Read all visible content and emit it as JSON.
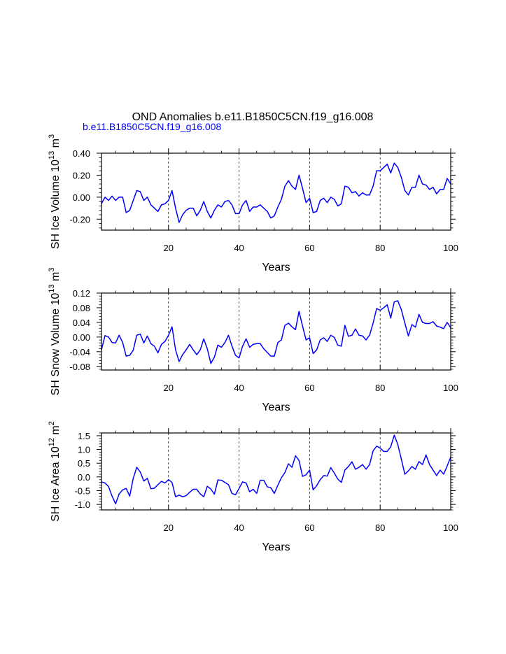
{
  "figure": {
    "title": "OND Anomalies b.e11.B1850C5CN.f19_g16.008",
    "subtitle": "b.e11.B1850C5CN.f19_g16.008",
    "colors": {
      "line": "#0000ff",
      "subtitle": "#0000ff",
      "axes": "#000000",
      "grid": "#000000"
    }
  },
  "chart_data": [
    {
      "type": "line",
      "xlabel": "Years",
      "ylabel": {
        "main": "SH Ice Volume 10",
        "sup": "13",
        "unit": " m",
        "unit_sup": "3"
      },
      "xlim": [
        1,
        100
      ],
      "ylim": [
        -0.3,
        0.4
      ],
      "xticks": [
        20,
        40,
        60,
        80,
        100
      ],
      "xtick_labels": [
        "20",
        "40",
        "60",
        "80",
        "100"
      ],
      "yticks": [
        0.4,
        0.2,
        0.0,
        -0.2
      ],
      "ytick_labels": [
        "0.40",
        "0.20",
        "0.00",
        "-0.20"
      ],
      "grid_x": [
        20,
        40,
        60,
        80
      ],
      "series": [
        {
          "name": "SH Ice Volume",
          "values": [
            -0.06,
            0.0,
            -0.03,
            0.01,
            -0.03,
            0.0,
            0.0,
            -0.14,
            -0.12,
            -0.03,
            0.06,
            0.05,
            -0.03,
            0.0,
            -0.07,
            -0.1,
            -0.13,
            -0.07,
            -0.06,
            -0.03,
            0.06,
            -0.1,
            -0.23,
            -0.16,
            -0.12,
            -0.1,
            -0.1,
            -0.17,
            -0.12,
            -0.04,
            -0.13,
            -0.19,
            -0.12,
            -0.07,
            -0.09,
            -0.04,
            -0.03,
            -0.07,
            -0.15,
            -0.15,
            -0.07,
            -0.03,
            -0.13,
            -0.09,
            -0.09,
            -0.07,
            -0.1,
            -0.13,
            -0.19,
            -0.17,
            -0.09,
            -0.02,
            0.1,
            0.15,
            0.1,
            0.07,
            0.2,
            0.08,
            -0.05,
            -0.01,
            -0.14,
            -0.13,
            -0.03,
            -0.01,
            -0.05,
            0.0,
            -0.02,
            -0.08,
            -0.06,
            0.1,
            0.09,
            0.04,
            0.05,
            0.01,
            0.04,
            0.02,
            0.02,
            0.1,
            0.24,
            0.24,
            0.27,
            0.3,
            0.22,
            0.31,
            0.27,
            0.18,
            0.06,
            0.02,
            0.09,
            0.09,
            0.2,
            0.12,
            0.11,
            0.07,
            0.09,
            0.03,
            0.07,
            0.07,
            0.17,
            0.12
          ]
        }
      ]
    },
    {
      "type": "line",
      "xlabel": "Years",
      "ylabel": {
        "main": "SH Snow Volume 10",
        "sup": "13",
        "unit": " m",
        "unit_sup": "3"
      },
      "xlim": [
        1,
        100
      ],
      "ylim": [
        -0.09,
        0.12
      ],
      "xticks": [
        20,
        40,
        60,
        80,
        100
      ],
      "xtick_labels": [
        "20",
        "40",
        "60",
        "80",
        "100"
      ],
      "yticks": [
        0.12,
        0.08,
        0.04,
        0.0,
        -0.04,
        -0.08
      ],
      "ytick_labels": [
        "0.12",
        "0.08",
        "0.04",
        "0.00",
        "-0.04",
        "-0.08"
      ],
      "grid_x": [
        20,
        40,
        60,
        80
      ],
      "series": [
        {
          "name": "SH Snow Volume",
          "values": [
            -0.035,
            0.004,
            0.0,
            -0.015,
            -0.016,
            0.005,
            -0.015,
            -0.052,
            -0.05,
            -0.036,
            0.005,
            0.008,
            -0.016,
            0.003,
            -0.018,
            -0.025,
            -0.043,
            -0.02,
            -0.012,
            0.005,
            0.028,
            -0.035,
            -0.067,
            -0.048,
            -0.035,
            -0.02,
            -0.035,
            -0.048,
            -0.035,
            -0.005,
            -0.032,
            -0.072,
            -0.055,
            -0.022,
            -0.028,
            -0.015,
            0.005,
            -0.025,
            -0.05,
            -0.057,
            -0.025,
            -0.005,
            -0.028,
            -0.02,
            -0.018,
            -0.018,
            -0.032,
            -0.042,
            -0.052,
            -0.052,
            -0.015,
            -0.008,
            0.032,
            0.038,
            0.028,
            0.02,
            0.07,
            0.03,
            -0.008,
            -0.002,
            -0.045,
            -0.035,
            -0.008,
            -0.002,
            -0.012,
            0.005,
            -0.001,
            -0.022,
            -0.025,
            0.032,
            0.002,
            0.005,
            0.022,
            0.005,
            0.003,
            -0.008,
            0.005,
            0.038,
            0.078,
            0.073,
            0.08,
            0.088,
            0.052,
            0.096,
            0.099,
            0.075,
            0.038,
            0.003,
            0.034,
            0.027,
            0.062,
            0.04,
            0.037,
            0.037,
            0.042,
            0.03,
            0.027,
            0.023,
            0.04,
            0.025
          ]
        }
      ]
    },
    {
      "type": "line",
      "xlabel": "Years",
      "ylabel": {
        "main": "SH Ice Area 10",
        "sup": "12",
        "unit": " m",
        "unit_sup": "2"
      },
      "xlim": [
        1,
        100
      ],
      "ylim": [
        -1.2,
        1.6
      ],
      "xticks": [
        20,
        40,
        60,
        80,
        100
      ],
      "xtick_labels": [
        "20",
        "40",
        "60",
        "80",
        "100"
      ],
      "yticks": [
        1.5,
        1.0,
        0.5,
        0.0,
        -0.5,
        -1.0
      ],
      "ytick_labels": [
        "1.5",
        "1.0",
        "0.5",
        "0.0",
        "-0.5",
        "-1.0"
      ],
      "grid_x": [
        20,
        40,
        60,
        80
      ],
      "series": [
        {
          "name": "SH Ice Area",
          "values": [
            -0.18,
            -0.22,
            -0.35,
            -0.7,
            -0.98,
            -0.62,
            -0.47,
            -0.42,
            -0.7,
            -0.05,
            0.35,
            0.18,
            -0.15,
            -0.05,
            -0.43,
            -0.41,
            -0.28,
            -0.16,
            -0.22,
            -0.1,
            -0.2,
            -0.72,
            -0.66,
            -0.72,
            -0.68,
            -0.56,
            -0.45,
            -0.45,
            -0.62,
            -0.72,
            -0.34,
            -0.44,
            -0.63,
            -0.11,
            -0.12,
            -0.2,
            -0.28,
            -0.6,
            -0.65,
            -0.42,
            -0.18,
            -0.22,
            -0.54,
            -0.45,
            -0.6,
            -0.12,
            -0.12,
            -0.36,
            -0.39,
            -0.6,
            -0.3,
            -0.03,
            0.16,
            0.48,
            0.35,
            0.77,
            0.6,
            0.02,
            0.08,
            0.25,
            -0.47,
            -0.32,
            -0.1,
            0.05,
            0.03,
            0.34,
            0.14,
            -0.08,
            -0.2,
            0.25,
            0.38,
            0.55,
            0.28,
            0.35,
            0.45,
            0.28,
            0.45,
            0.95,
            1.12,
            1.05,
            0.93,
            0.93,
            1.1,
            1.52,
            1.18,
            0.65,
            0.1,
            0.22,
            0.38,
            0.28,
            0.56,
            0.45,
            0.8,
            0.45,
            0.25,
            0.05,
            0.25,
            0.1,
            0.4,
            0.72
          ]
        }
      ]
    }
  ]
}
